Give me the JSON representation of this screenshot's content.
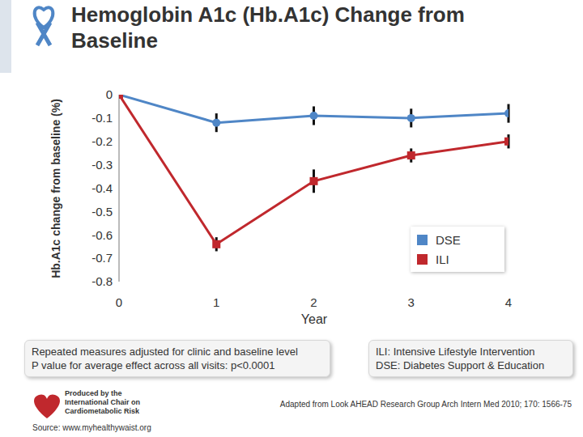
{
  "chart_data": {
    "type": "line",
    "title": "Hemoglobin A1c (Hb.A1c) Change from Baseline",
    "x_label": "Year",
    "y_label": "Hb.A1c change from baseline (%)",
    "x": [
      0,
      1,
      2,
      3,
      4
    ],
    "xlim": [
      0,
      4
    ],
    "xticks": [
      0,
      1,
      2,
      3,
      4
    ],
    "ylim": [
      -0.8,
      0
    ],
    "yticks": [
      0,
      -0.1,
      -0.2,
      -0.3,
      -0.4,
      -0.5,
      -0.6,
      -0.7,
      -0.8
    ],
    "grid": false,
    "legend": "lower right",
    "series": [
      {
        "name": "DSE",
        "color": "#4f86c6",
        "marker": "circle",
        "values": [
          0,
          -0.12,
          -0.09,
          -0.1,
          -0.08
        ],
        "errors": [
          null,
          0.04,
          0.04,
          0.04,
          0.04
        ]
      },
      {
        "name": "ILI",
        "color": "#c0282d",
        "marker": "square",
        "values": [
          0,
          -0.64,
          -0.37,
          -0.26,
          -0.2
        ],
        "errors": [
          null,
          0.03,
          0.05,
          0.03,
          0.03
        ]
      }
    ],
    "notes": [
      "Repeated measures adjusted for clinic and baseline level",
      "P value for average effect across all visits: p<0.0001"
    ],
    "definitions": [
      "ILI: Intensive Lifestyle Intervention",
      "DSE: Diabetes Support & Education"
    ],
    "citation": "Adapted from Look AHEAD Research Group Arch Intern Med 2010; 170: 1566-75",
    "producer": [
      "Produced by the",
      "International Chair on",
      "Cardiometabolic Risk"
    ],
    "source": "Source: www.myhealthywaist.org"
  }
}
